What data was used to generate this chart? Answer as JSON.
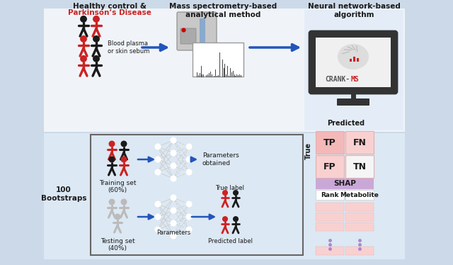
{
  "bg_outer": "#ccd9e8",
  "white": "#ffffff",
  "red": "#cc2222",
  "black": "#1a1a1a",
  "blue_arrow": "#2255bb",
  "pink_light": "#f9d0d0",
  "pink_medium": "#f4b8b8",
  "purple_shap": "#c9a8d8",
  "panel_top_bg": "#f0f4f8",
  "panel_bot_bg": "#dce8f3",
  "col3_bg": "#e4edf7",
  "gray_person": "#bbbbbb",
  "machine_gray": "#bbbbbb",
  "monitor_dark": "#333333",
  "screen_bg": "#f0f0f0",
  "title_top1": "Healthy control &",
  "title_top1_red": "Parkinson’s Disease",
  "title_top2": "Mass spectrometry-based\nanalytical method",
  "title_top3": "Neural network-based\nalgorithm",
  "blood_label": "Blood plasma\nor skin sebum",
  "bootstraps_label": "100\nBootstraps",
  "training_label": "Training set\n(60%)",
  "testing_label": "Testing set\n(40%)",
  "params_obtained": "Parameters\nobtained",
  "true_label": "True label",
  "predicted_label": "Predicted label",
  "parameters_label": "Parameters",
  "predicted_title": "Predicted",
  "true_title": "True",
  "tp": "TP",
  "fn": "FN",
  "fp": "FP",
  "tn": "TN",
  "shap": "SHAP",
  "rank": "Rank",
  "metabolite": "Metabolite",
  "crank_label": "CRANK-",
  "ms_label": "MS"
}
